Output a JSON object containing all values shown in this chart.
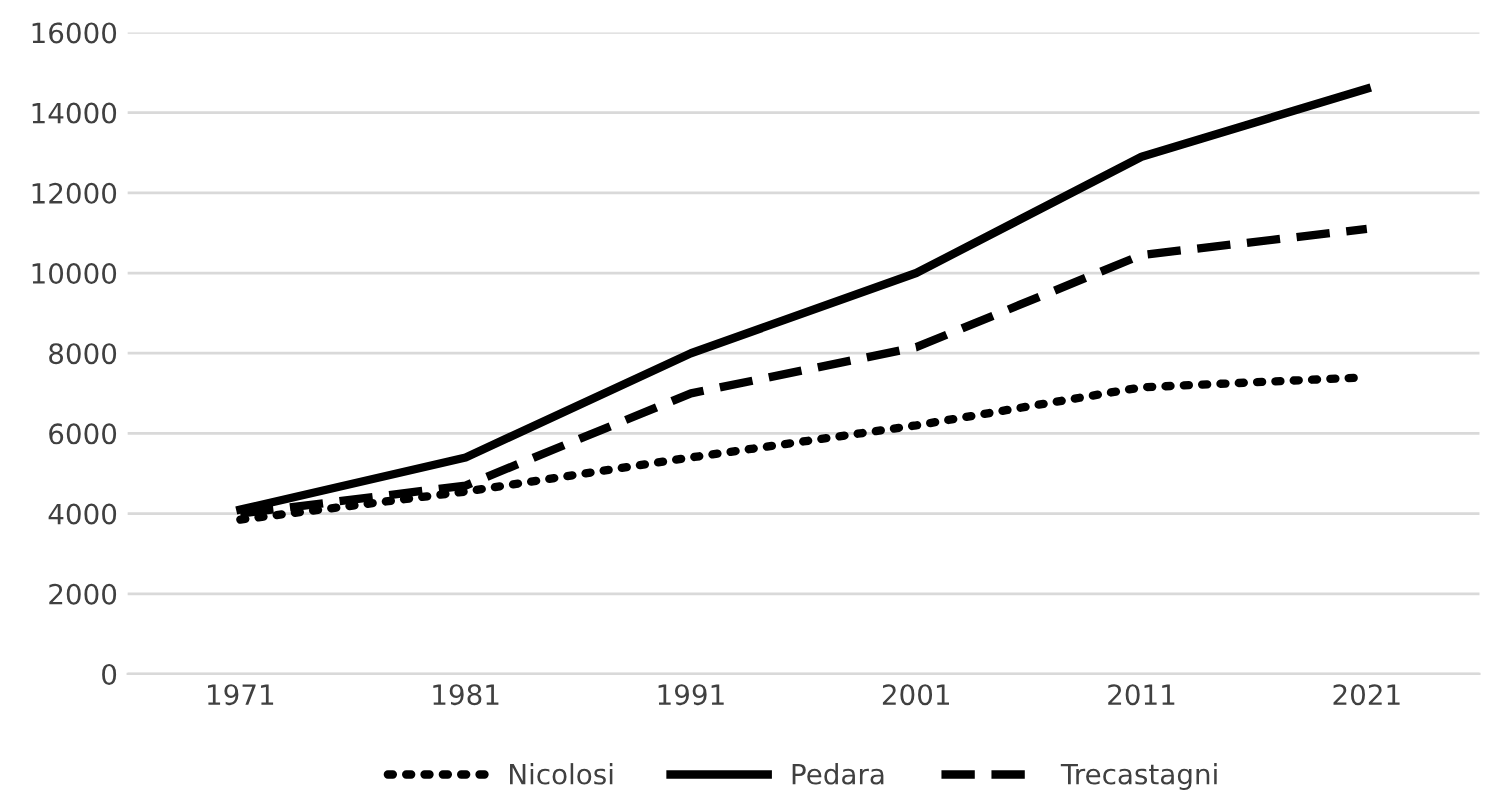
{
  "chart_data": {
    "type": "line",
    "categories": [
      "1971",
      "1981",
      "1991",
      "2001",
      "2011",
      "2021"
    ],
    "series": [
      {
        "name": "Nicolosi",
        "color": "#000000",
        "line_style": "dotted",
        "values": [
          3850,
          4550,
          5400,
          6200,
          7150,
          7400
        ]
      },
      {
        "name": "Pedara",
        "color": "#000000",
        "line_style": "solid",
        "values": [
          4100,
          5400,
          8000,
          10000,
          12900,
          14600
        ]
      },
      {
        "name": "Trecastagni",
        "color": "#000000",
        "line_style": "dashed",
        "values": [
          4000,
          4700,
          7000,
          8150,
          10450,
          11100
        ]
      }
    ],
    "ylim": [
      0,
      16000
    ],
    "yticks": [
      0,
      2000,
      4000,
      6000,
      8000,
      10000,
      12000,
      14000,
      16000
    ],
    "grid": "y",
    "legend": "bottom",
    "marker": "none"
  }
}
